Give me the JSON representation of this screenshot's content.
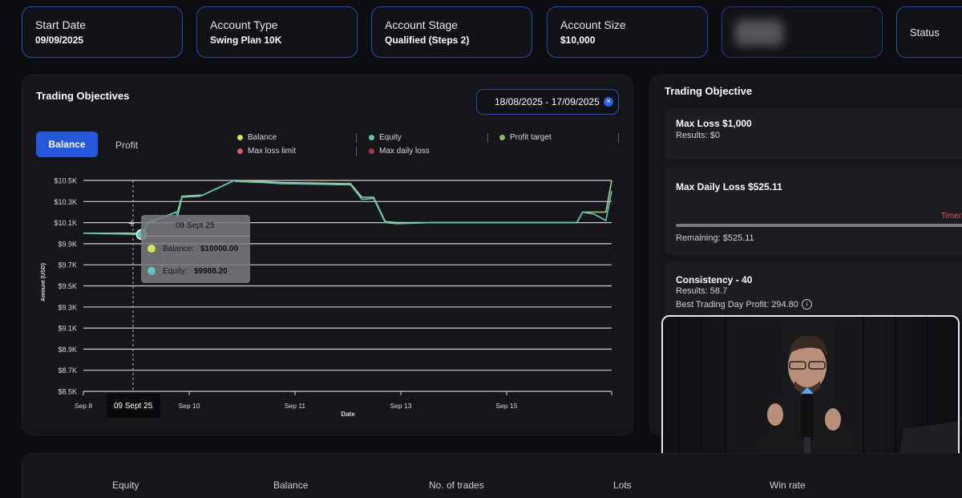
{
  "header_cards": [
    {
      "label": "Start Date",
      "value": "09/09/2025"
    },
    {
      "label": "Account Type",
      "value": "Swing Plan 10K"
    },
    {
      "label": "Account Stage",
      "value": "Qualified (Steps 2)"
    },
    {
      "label": "Account Size",
      "value": "$10,000"
    }
  ],
  "status_label": "Status",
  "trading_objectives": {
    "title": "Trading Objectives",
    "date_range": "18/08/2025 - 17/09/2025",
    "clear_icon": "close-icon",
    "tabs": {
      "active": "Balance",
      "inactive": "Profit"
    },
    "legend": [
      {
        "label": "Balance",
        "color": "#d6e25a"
      },
      {
        "label": "Equity",
        "color": "#5fc6bf"
      },
      {
        "label": "Profit target",
        "color": "#7fc35a"
      },
      {
        "label": "Max loss limit",
        "color": "#e05a5a"
      },
      {
        "label": "Max daily loss",
        "color": "#a83844"
      }
    ]
  },
  "tooltip": {
    "date": "09 Sept 25",
    "balance_label": "Balance:",
    "balance_value": "$10000.00",
    "equity_label": "Equity:",
    "equity_value": "$9988.20"
  },
  "chart_data": {
    "type": "line",
    "title": "",
    "xlabel": "Date",
    "ylabel": "Amount (USD)",
    "ylim": [
      8500,
      10500
    ],
    "y_ticks": [
      "$10.5K",
      "$10.3K",
      "$10.1K",
      "$9.9K",
      "$9.7K",
      "$9.5K",
      "$9.3K",
      "$9.1K",
      "$8.9K",
      "$8.7K",
      "$8.5K"
    ],
    "x_ticks": [
      "Sep 8",
      "09 Sept 25",
      "Sep 10",
      "Sep 11",
      "Sep 13",
      "Sep 15"
    ],
    "x": [
      8.0,
      9.0,
      9.02,
      9.1,
      9.6,
      9.62,
      9.7,
      10.0,
      10.05,
      10.6,
      10.62,
      11.1,
      11.4,
      12.5,
      12.6,
      12.8,
      13.0,
      13.2,
      13.4,
      14.0,
      14.6,
      15.2,
      15.4,
      15.8,
      16.1,
      16.3,
      16.5,
      16.6,
      16.8,
      16.9,
      17.0,
      17.1
    ],
    "series": [
      {
        "name": "Balance",
        "values": [
          10000,
          10000,
          10000,
          10100,
          10200,
          10200,
          10350,
          10360,
          10360,
          10500,
          10500,
          10490,
          10480,
          10470,
          10470,
          10340,
          10340,
          10110,
          10100,
          10100,
          10100,
          10100,
          10100,
          10100,
          10100,
          10100,
          10100,
          10200,
          10200,
          10200,
          10200,
          10500
        ]
      },
      {
        "name": "Equity",
        "values": [
          10000,
          9988,
          9990,
          10090,
          10200,
          10150,
          10340,
          10350,
          10360,
          10500,
          10490,
          10480,
          10470,
          10460,
          10460,
          10320,
          10330,
          10100,
          10090,
          10100,
          10100,
          10100,
          10100,
          10100,
          10100,
          10100,
          10100,
          10200,
          10180,
          10150,
          10120,
          10400
        ]
      }
    ],
    "grid": true
  },
  "objective_panel": {
    "title": "Trading Objective",
    "cards": [
      {
        "title": "Max Loss $1,000",
        "result": "Results: $0"
      },
      {
        "title": "Max Daily Loss $525.11",
        "timer": "Timer",
        "remaining": "Remaining: $525.11"
      },
      {
        "title": "Consistency - 40",
        "result": "Results: 58.7",
        "best": "Best Trading Day Profit: 294.80",
        "info_icon": "info-icon"
      }
    ]
  },
  "bottom_stats": {
    "labels": [
      "Equity",
      "Balance",
      "No. of trades",
      "Lots",
      "Win rate"
    ]
  }
}
